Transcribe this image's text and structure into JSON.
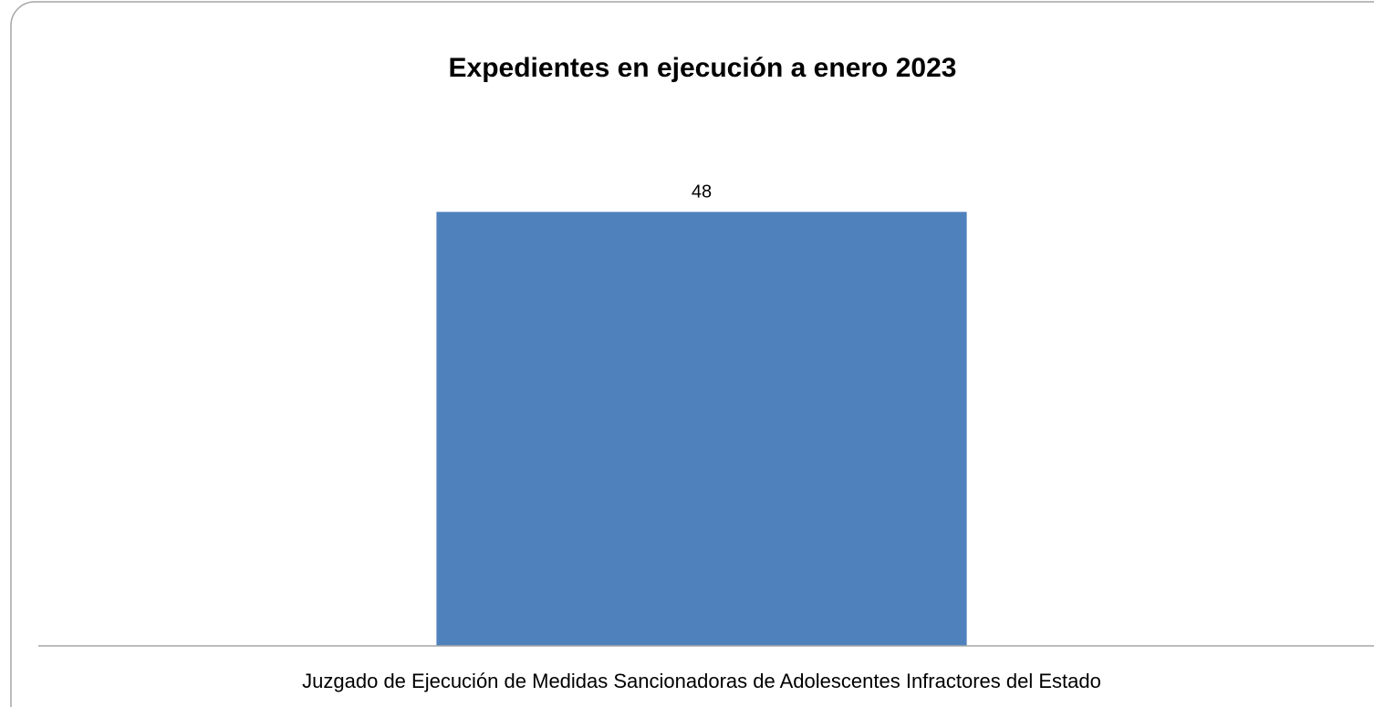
{
  "chart_data": {
    "type": "bar",
    "title": "Expedientes en ejecución a enero  2023",
    "categories": [
      "Juzgado de Ejecución de  Medidas Sancionadoras de Adolescentes Infractores del Estado"
    ],
    "values": [
      48
    ],
    "data_labels": [
      "48"
    ],
    "xlabel": "",
    "ylabel": "",
    "ylim": [
      0,
      56
    ],
    "grid": false,
    "legend": "none",
    "colors": {
      "bar": "#4F81BD",
      "frame": "#A6A6A6",
      "axis": "#A6A6A6"
    }
  }
}
